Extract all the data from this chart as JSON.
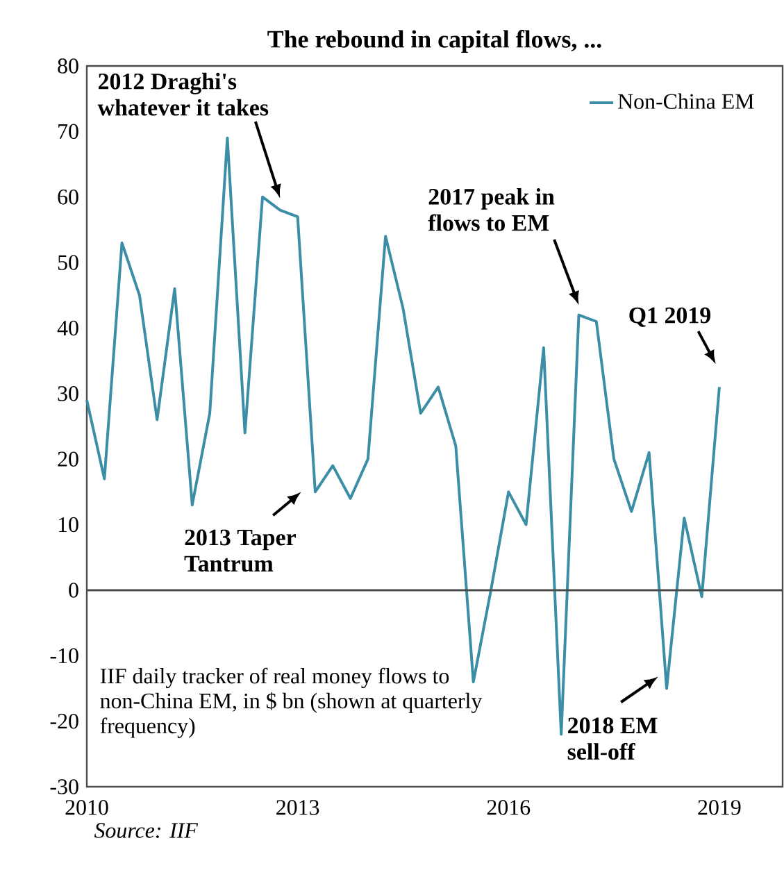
{
  "chart_data": {
    "type": "line",
    "title": "The rebound in capital flows, ...",
    "x": [
      2010,
      2010.25,
      2010.5,
      2010.75,
      2011,
      2011.25,
      2011.5,
      2011.75,
      2012,
      2012.25,
      2012.5,
      2012.75,
      2013,
      2013.25,
      2013.5,
      2013.75,
      2014,
      2014.25,
      2014.5,
      2014.75,
      2015,
      2015.25,
      2015.5,
      2015.75,
      2016,
      2016.25,
      2016.5,
      2016.75,
      2017,
      2017.25,
      2017.5,
      2017.75,
      2018,
      2018.25,
      2018.5,
      2018.75,
      2019
    ],
    "series": [
      {
        "name": "Non-China EM",
        "color": "#3b8ea5",
        "values": [
          29,
          17,
          53,
          45,
          26,
          46,
          13,
          27,
          69,
          24,
          60,
          58,
          57,
          15,
          19,
          14,
          20,
          54,
          43,
          27,
          31,
          22,
          -14,
          0,
          15,
          10,
          37,
          -22,
          42,
          41,
          20,
          12,
          21,
          -15,
          11,
          -1,
          31
        ]
      }
    ],
    "xlim": [
      2010,
      2019.9
    ],
    "xticks": [
      2010,
      2013,
      2016,
      2019
    ],
    "ylim": [
      -30,
      80
    ],
    "yticks": [
      -30,
      -20,
      -10,
      0,
      10,
      20,
      30,
      40,
      50,
      60,
      70,
      80
    ],
    "ref_lines": [
      {
        "axis": "y",
        "value": 0
      }
    ],
    "grid": false,
    "legend": "top right",
    "marker": "none",
    "line_style": "solid",
    "annotations": [
      "2012 Draghi's whatever it takes",
      {
        "text": "2013 Taper Tantrum",
        "x": 2013.25,
        "y": 15
      },
      "2017 peak in flows to EM",
      {
        "text": "Q1 2019",
        "x": 2019,
        "y": 31
      },
      {
        "text": "2018 EM sell-off",
        "x": 2018.25,
        "y": -15
      },
      "IIF daily tracker of real money flows to non-China EM, in $ bn (shown at quarterly frequency)",
      "Source: IIF"
    ]
  }
}
